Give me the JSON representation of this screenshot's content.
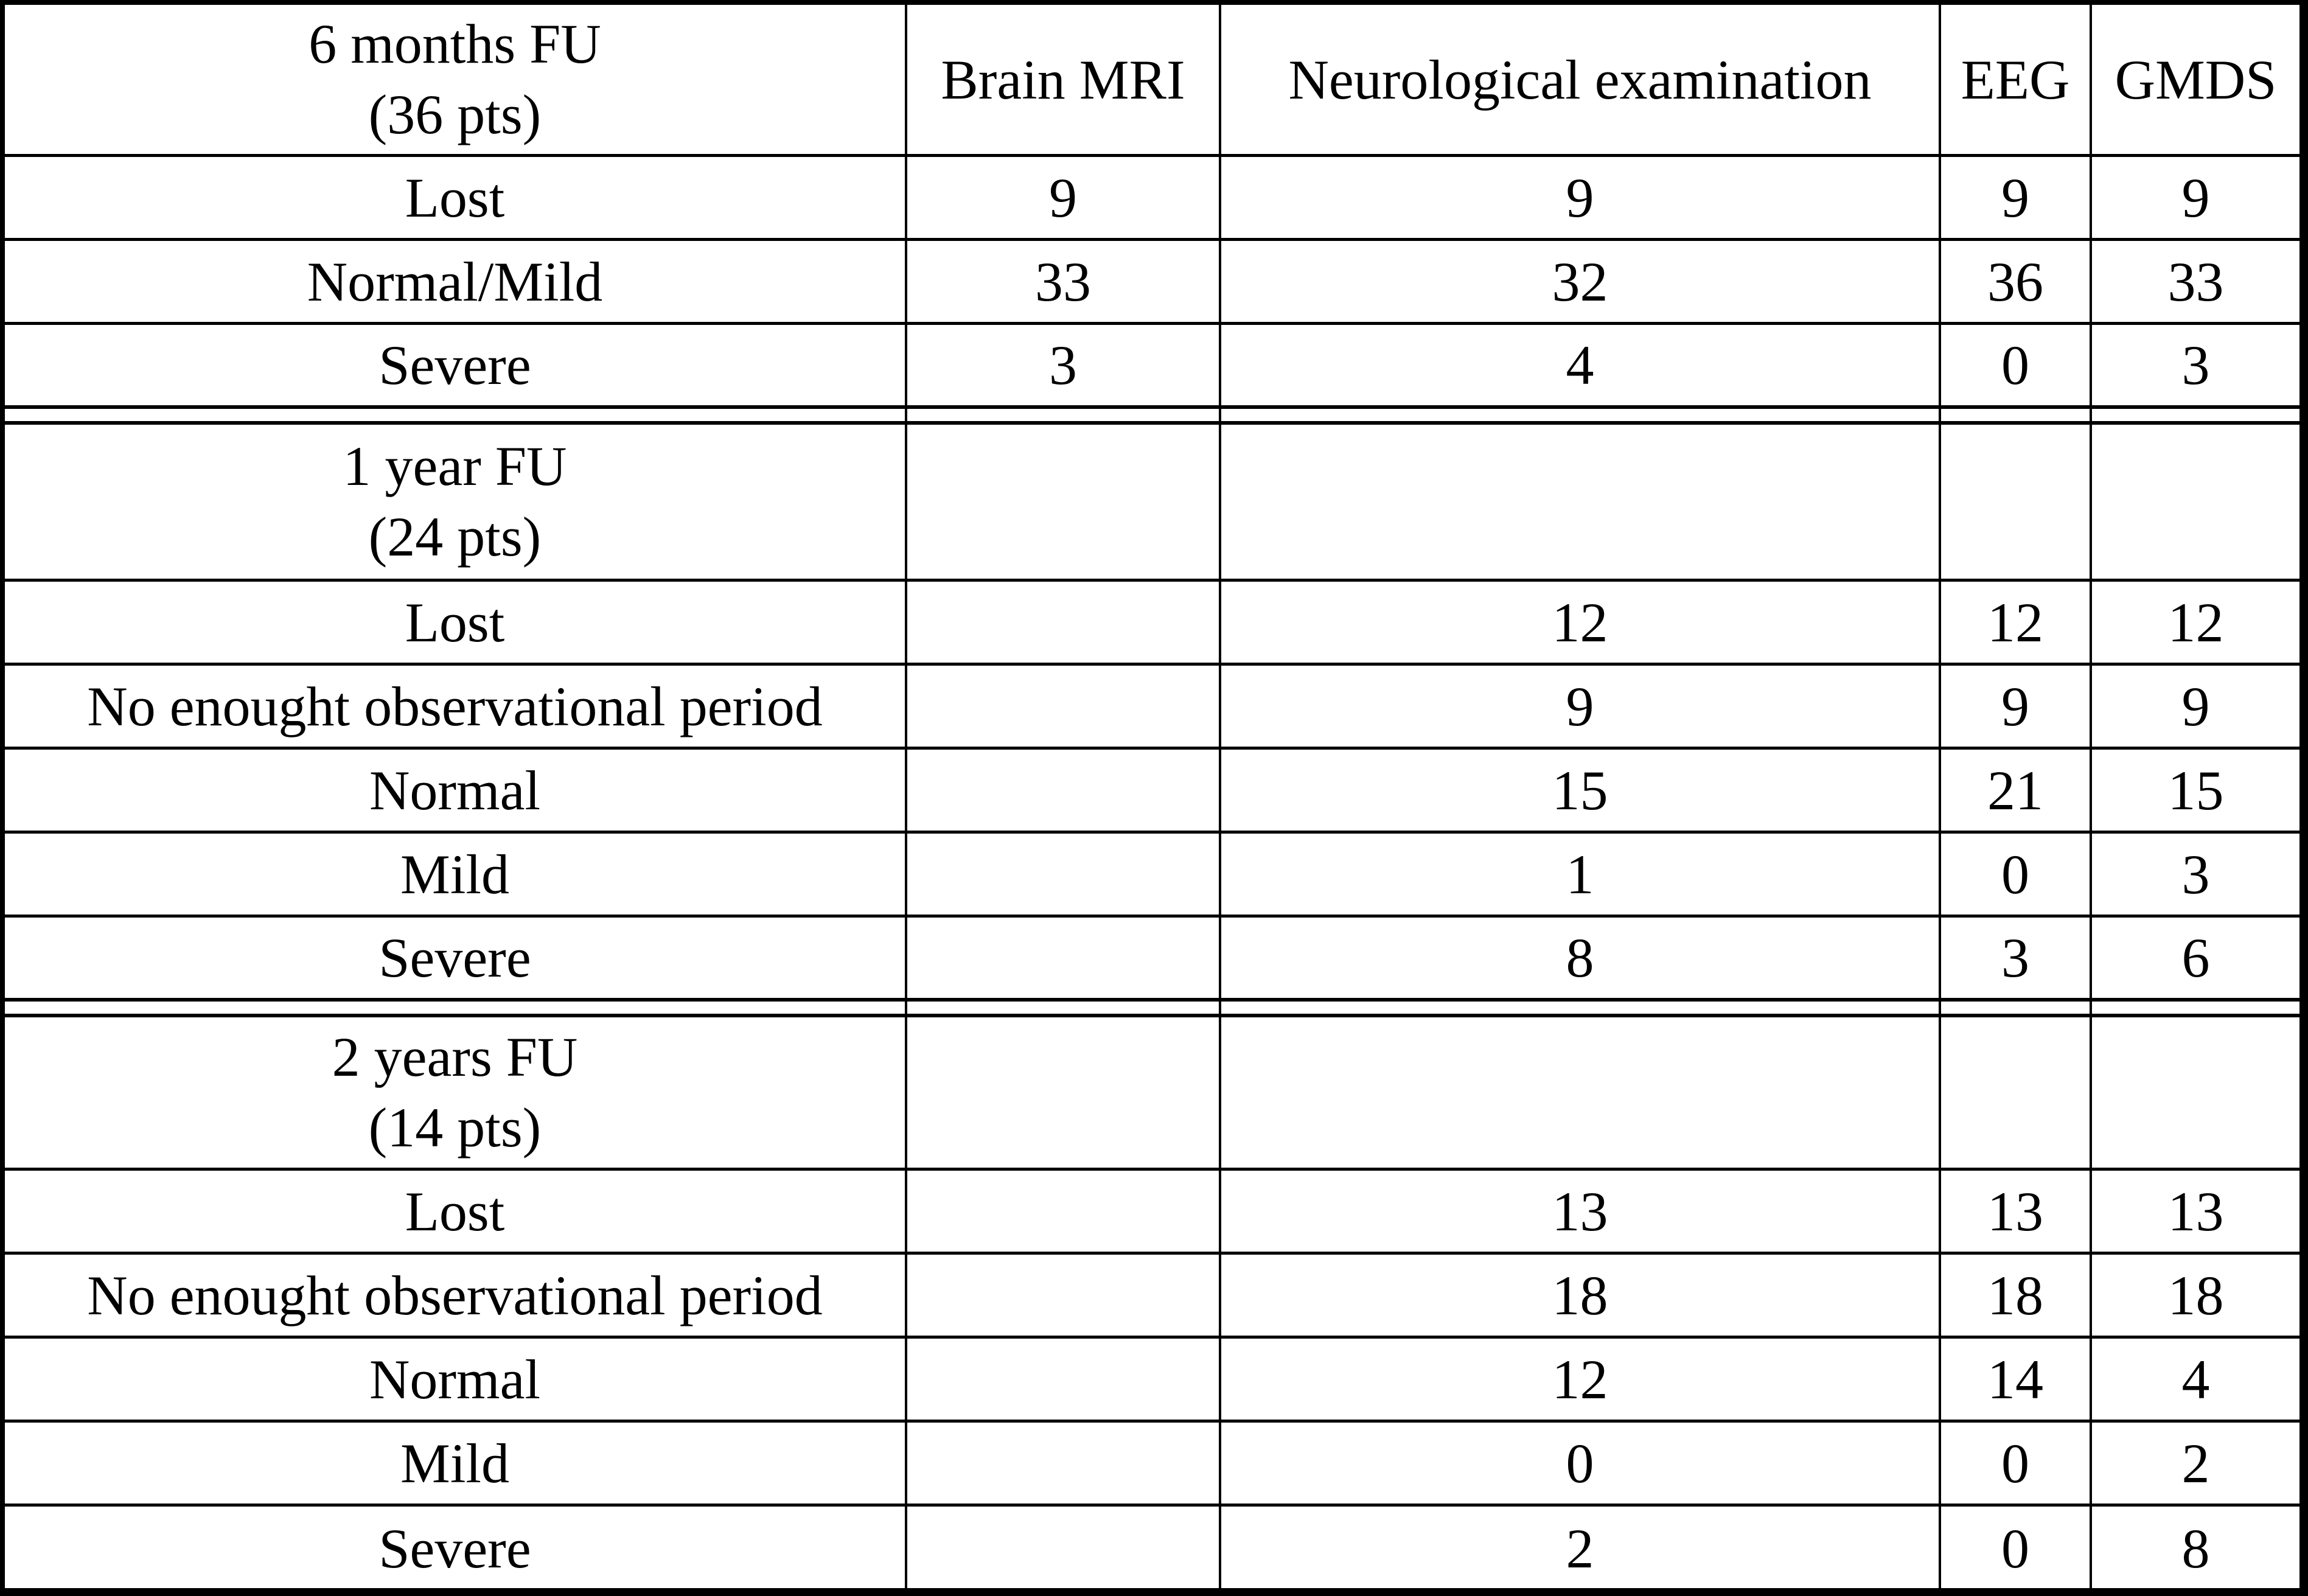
{
  "colors": {
    "text": "#000000",
    "background": "#ffffff",
    "grid_lines": "#000000"
  },
  "table": {
    "header": {
      "period_line1": "6 months FU",
      "period_line2": "(36 pts)",
      "columns": [
        "Brain MRI",
        "Neurological examination",
        "EEG",
        "GMDS"
      ]
    },
    "sections": [
      {
        "rows": [
          {
            "label": "Lost",
            "values": [
              "9",
              "9",
              "9",
              "9"
            ]
          },
          {
            "label": "Normal/Mild",
            "values": [
              "33",
              "32",
              "36",
              "33"
            ]
          },
          {
            "label": "Severe",
            "values": [
              "3",
              "4",
              "0",
              "3"
            ]
          }
        ]
      },
      {
        "title_line1": "1 year FU",
        "title_line2": "(24 pts)",
        "rows": [
          {
            "label": "Lost",
            "values": [
              "",
              "12",
              "12",
              "12"
            ]
          },
          {
            "label": "No enought observational period",
            "values": [
              "",
              "9",
              "9",
              "9"
            ]
          },
          {
            "label": "Normal",
            "values": [
              "",
              "15",
              "21",
              "15"
            ]
          },
          {
            "label": "Mild",
            "values": [
              "",
              "1",
              "0",
              "3"
            ]
          },
          {
            "label": "Severe",
            "values": [
              "",
              "8",
              "3",
              "6"
            ]
          }
        ]
      },
      {
        "title_line1": "2 years FU",
        "title_line2": "(14 pts)",
        "rows": [
          {
            "label": "Lost",
            "values": [
              "",
              "13",
              "13",
              "13"
            ]
          },
          {
            "label": "No enought observational period",
            "values": [
              "",
              "18",
              "18",
              "18"
            ]
          },
          {
            "label": "Normal",
            "values": [
              "",
              "12",
              "14",
              "4"
            ]
          },
          {
            "label": "Mild",
            "values": [
              "",
              "0",
              "0",
              "2"
            ]
          },
          {
            "label": "Severe",
            "values": [
              "",
              "2",
              "0",
              "8"
            ]
          }
        ]
      }
    ]
  }
}
